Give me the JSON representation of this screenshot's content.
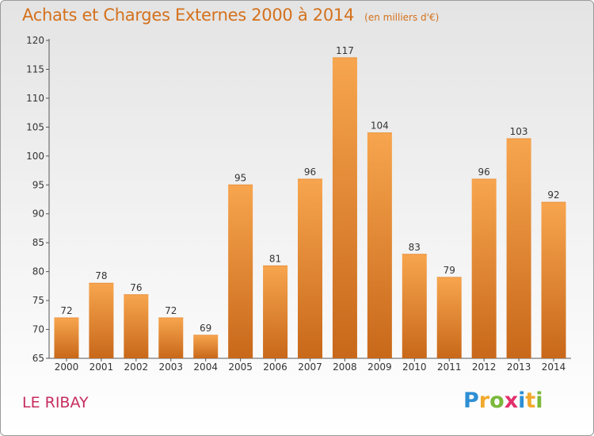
{
  "header": {
    "title": "Achats et Charges Externes 2000 à 2014",
    "subtitle": "(en milliers d'€)"
  },
  "footer": {
    "place": "LE RIBAY",
    "brand": {
      "letters": [
        "P",
        "r",
        "o",
        "x",
        "i",
        "t",
        "i"
      ],
      "colors": [
        "#2e8fd4",
        "#f2a92c",
        "#7ab83a",
        "#e2306c",
        "#2e8fd4",
        "#f2a92c",
        "#7ab83a"
      ]
    }
  },
  "colors": {
    "bar_light": "#f7a54e",
    "bar_dark": "#c8681a",
    "title": "#d4711c",
    "place": "#c62d5f"
  },
  "chart_data": {
    "type": "bar",
    "title": "Achats et Charges Externes 2000 à 2014",
    "subtitle": "(en milliers d'€)",
    "categories": [
      "2000",
      "2001",
      "2002",
      "2003",
      "2004",
      "2005",
      "2006",
      "2007",
      "2008",
      "2009",
      "2010",
      "2011",
      "2012",
      "2013",
      "2014"
    ],
    "values": [
      72,
      78,
      76,
      72,
      69,
      95,
      81,
      96,
      117,
      104,
      83,
      79,
      96,
      103,
      92
    ],
    "ylim": [
      65,
      120
    ],
    "yticks": [
      65,
      70,
      75,
      80,
      85,
      90,
      95,
      100,
      105,
      110,
      115,
      120
    ],
    "xlabel": "",
    "ylabel": "",
    "grid": false,
    "data_labels": true
  }
}
